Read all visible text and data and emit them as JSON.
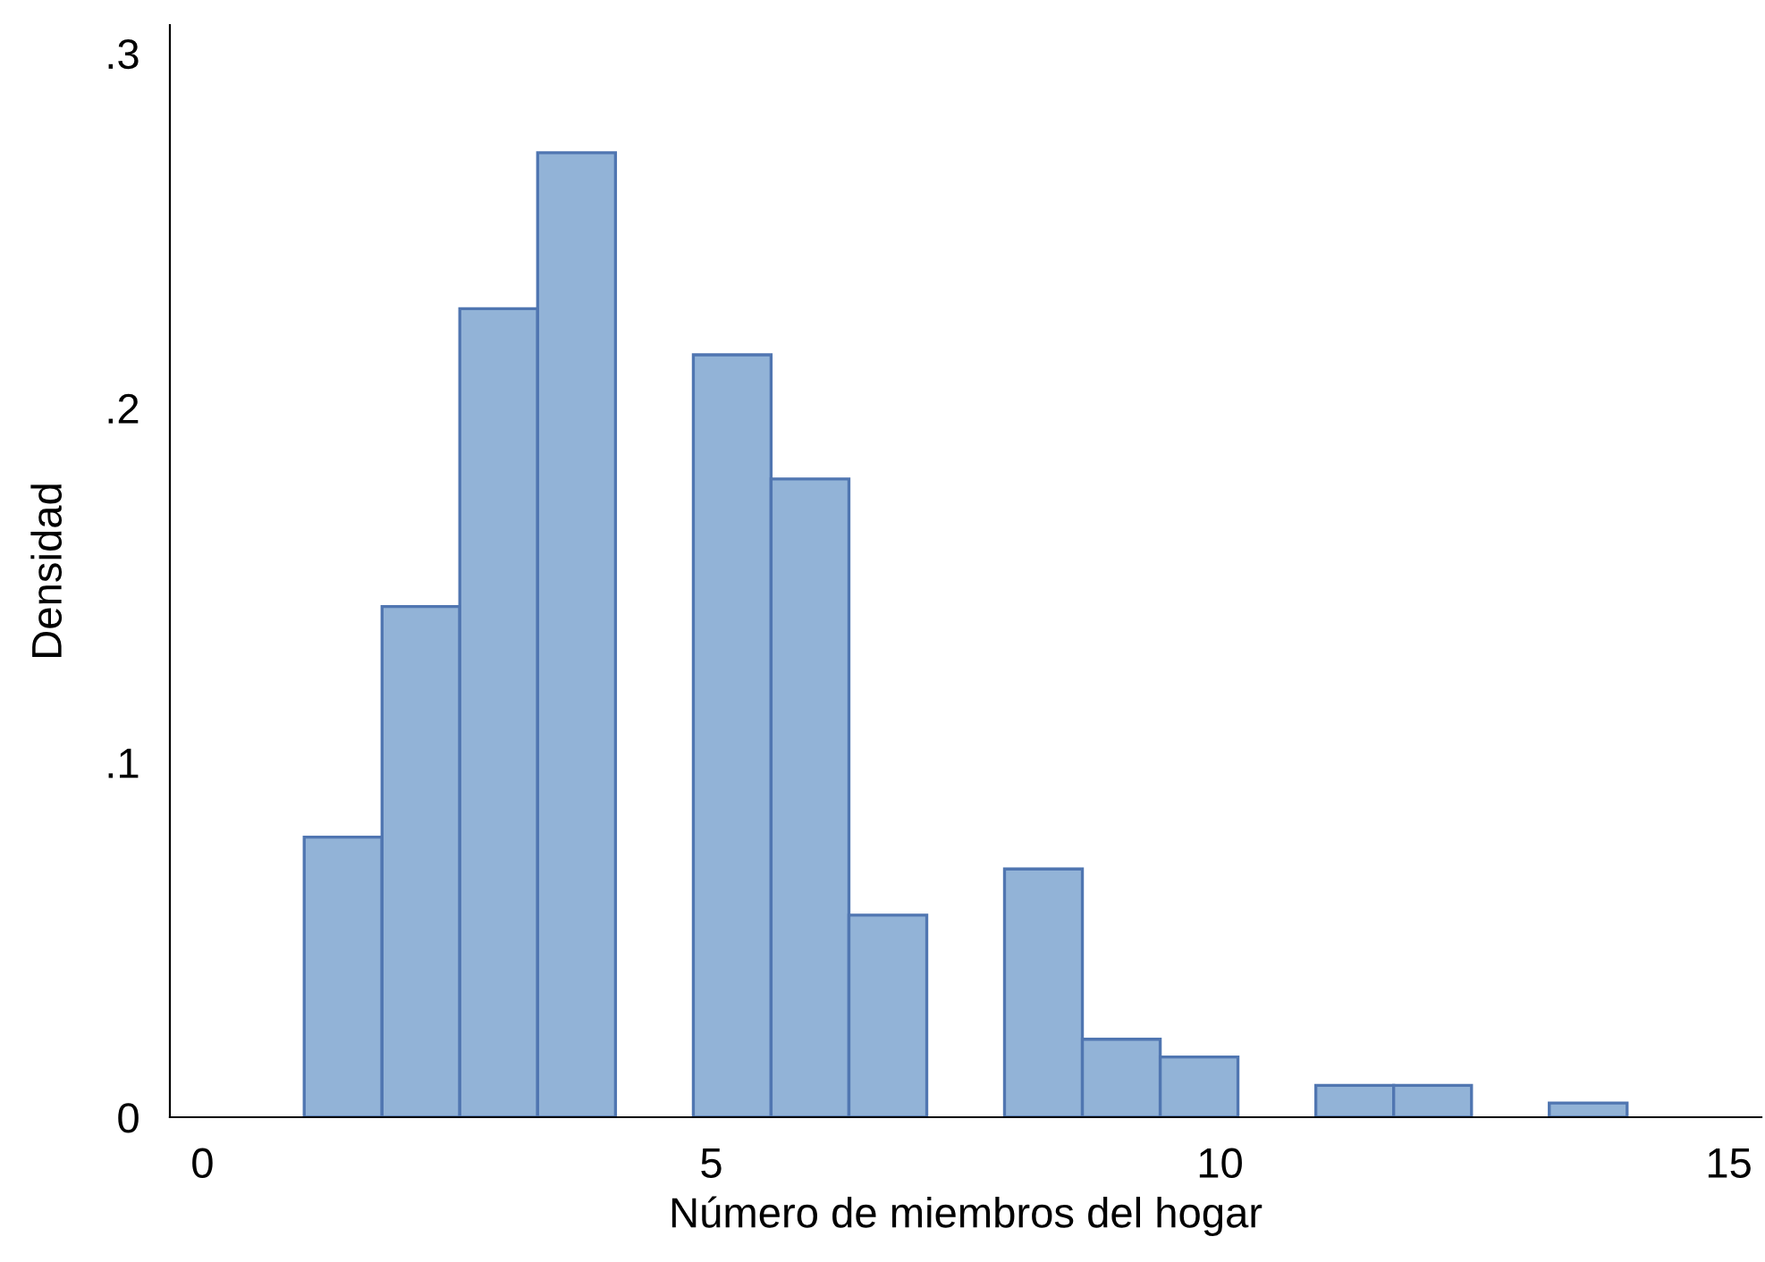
{
  "chart_data": {
    "type": "histogram",
    "xlabel": "Número de miembros del hogar",
    "ylabel": "Densidad",
    "bins": [
      1,
      1.765,
      2.529,
      3.294,
      4.059,
      4.824,
      5.588,
      6.353,
      7.118,
      7.882,
      8.647,
      9.412,
      10.176,
      10.941,
      11.706,
      12.471,
      13.235,
      14
    ],
    "values": [
      0.079,
      0.144,
      0.228,
      0.272,
      0,
      0.215,
      0.18,
      0.057,
      0,
      0.07,
      0.022,
      0.017,
      0,
      0.009,
      0.009,
      0,
      0.004
    ],
    "color": "#92b3d7",
    "xlim": [
      -0.32,
      15.32
    ],
    "ylim": [
      0,
      0.308
    ],
    "xticks": [
      0,
      5,
      10,
      15
    ],
    "yticks": [
      {
        "value": 0,
        "label": "0"
      },
      {
        "value": 0.1,
        "label": ".1"
      },
      {
        "value": 0.2,
        "label": ".2"
      },
      {
        "value": 0.3,
        "label": ".3"
      }
    ],
    "grid": false,
    "legend": false
  }
}
